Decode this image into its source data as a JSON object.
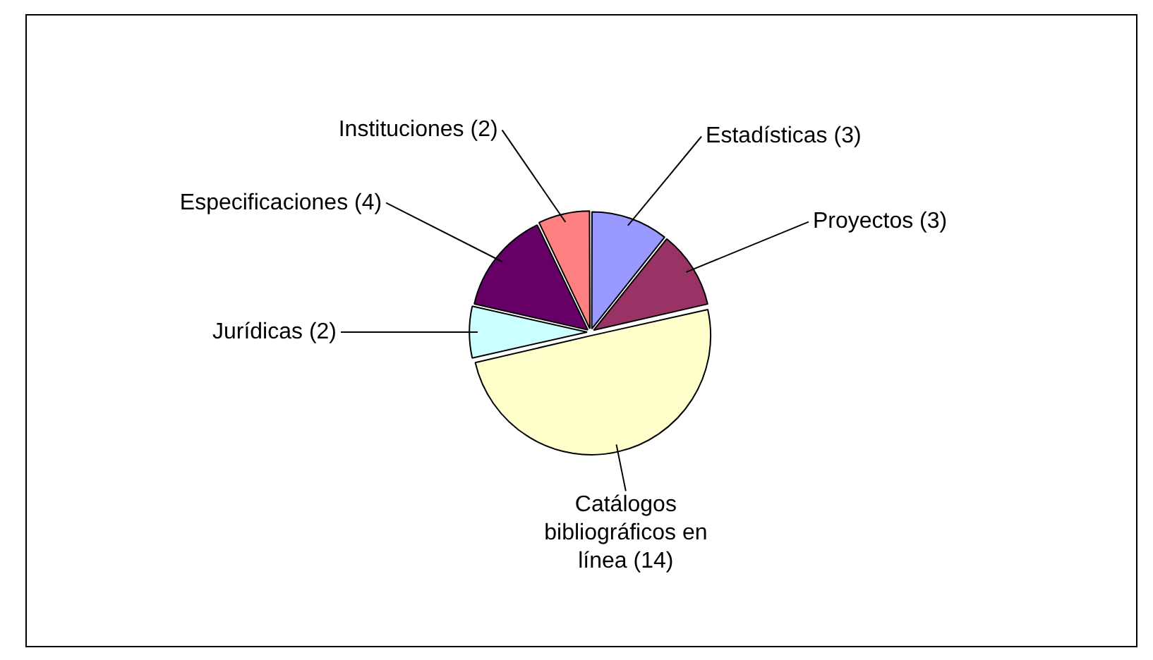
{
  "chart_data": {
    "type": "pie",
    "categories": [
      "Estadísticas (3)",
      "Proyectos (3)",
      "Catálogos bibliográficos en línea (14)",
      "Jurídicas (2)",
      "Especificaciones (4)",
      "Instituciones (2)"
    ],
    "values": [
      3,
      3,
      14,
      2,
      4,
      2
    ],
    "colors": [
      "#9999ff",
      "#993366",
      "#ffffcc",
      "#ccffff",
      "#660066",
      "#ff8080"
    ],
    "legend": false
  }
}
